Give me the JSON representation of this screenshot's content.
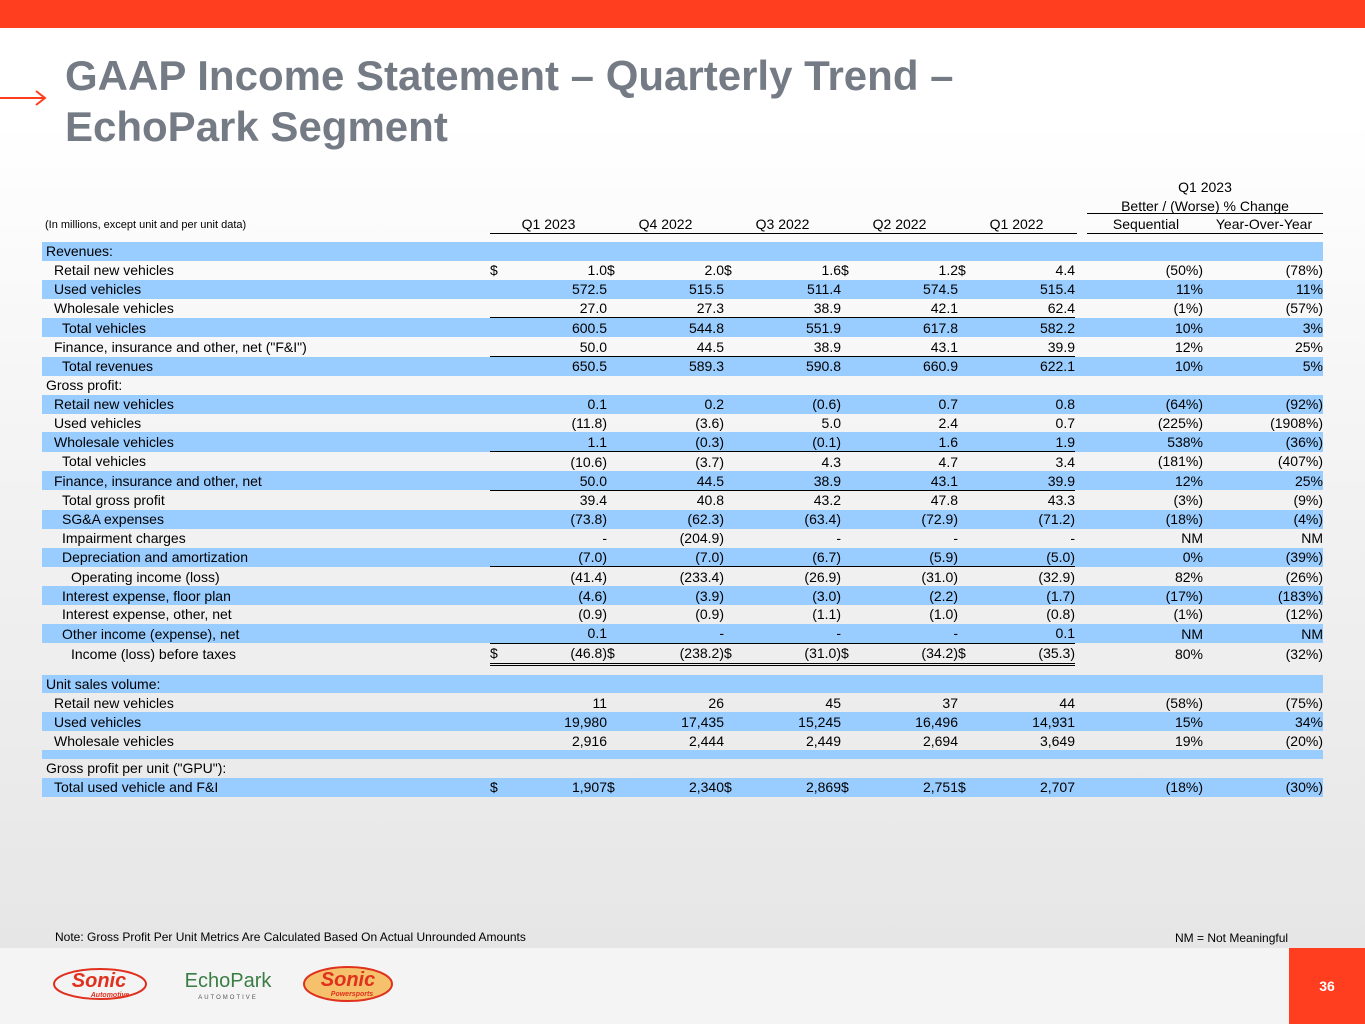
{
  "title": {
    "line1": "GAAP Income Statement – Quarterly Trend –",
    "line2": "EchoPark Segment"
  },
  "units_note": "(In millions, except unit and per unit data)",
  "columns": [
    "Q1 2023",
    "Q4 2022",
    "Q3 2022",
    "Q2 2022",
    "Q1 2022"
  ],
  "change_header": {
    "period": "Q1 2023",
    "label": "Better / (Worse) % Change",
    "sequential": "Sequential",
    "yoy": "Year-Over-Year"
  },
  "rows": [
    {
      "label": "Revenues:",
      "style": "blue",
      "indent": 0,
      "values": [
        "",
        "",
        "",
        "",
        ""
      ],
      "seq": "",
      "yoy": ""
    },
    {
      "label": "Retail new vehicles",
      "indent": 1,
      "dollar": true,
      "values": [
        "1.0",
        "2.0",
        "1.6",
        "1.2",
        "4.4"
      ],
      "seq": "(50%)",
      "yoy": "(78%)"
    },
    {
      "label": "Used vehicles",
      "style": "blue",
      "indent": 1,
      "values": [
        "572.5",
        "515.5",
        "511.4",
        "574.5",
        "515.4"
      ],
      "seq": "11%",
      "yoy": "11%"
    },
    {
      "label": "Wholesale vehicles",
      "indent": 1,
      "underline": "single",
      "values": [
        "27.0",
        "27.3",
        "38.9",
        "42.1",
        "62.4"
      ],
      "seq": "(1%)",
      "yoy": "(57%)"
    },
    {
      "label": "Total vehicles",
      "style": "blue",
      "indent": 2,
      "values": [
        "600.5",
        "544.8",
        "551.9",
        "617.8",
        "582.2"
      ],
      "seq": "10%",
      "yoy": "3%"
    },
    {
      "label": "Finance, insurance and other, net (\"F&I\")",
      "indent": 1,
      "underline": "single",
      "values": [
        "50.0",
        "44.5",
        "38.9",
        "43.1",
        "39.9"
      ],
      "seq": "12%",
      "yoy": "25%"
    },
    {
      "label": "Total revenues",
      "style": "blue",
      "indent": 2,
      "values": [
        "650.5",
        "589.3",
        "590.8",
        "660.9",
        "622.1"
      ],
      "seq": "10%",
      "yoy": "5%"
    },
    {
      "label": "Gross profit:",
      "indent": 0,
      "values": [
        "",
        "",
        "",
        "",
        ""
      ],
      "seq": "",
      "yoy": ""
    },
    {
      "label": "Retail new vehicles",
      "style": "blue",
      "indent": 1,
      "values": [
        "0.1",
        "0.2",
        "(0.6)",
        "0.7",
        "0.8"
      ],
      "seq": "(64%)",
      "yoy": "(92%)"
    },
    {
      "label": "Used vehicles",
      "indent": 1,
      "values": [
        "(11.8)",
        "(3.6)",
        "5.0",
        "2.4",
        "0.7"
      ],
      "seq": "(225%)",
      "yoy": "(1908%)"
    },
    {
      "label": "Wholesale vehicles",
      "style": "blue",
      "indent": 1,
      "underline": "single",
      "values": [
        "1.1",
        "(0.3)",
        "(0.1)",
        "1.6",
        "1.9"
      ],
      "seq": "538%",
      "yoy": "(36%)"
    },
    {
      "label": "Total vehicles",
      "indent": 2,
      "values": [
        "(10.6)",
        "(3.7)",
        "4.3",
        "4.7",
        "3.4"
      ],
      "seq": "(181%)",
      "yoy": "(407%)"
    },
    {
      "label": "Finance, insurance and other, net",
      "style": "blue",
      "indent": 1,
      "underline": "single",
      "values": [
        "50.0",
        "44.5",
        "38.9",
        "43.1",
        "39.9"
      ],
      "seq": "12%",
      "yoy": "25%"
    },
    {
      "label": "Total gross profit",
      "indent": 2,
      "values": [
        "39.4",
        "40.8",
        "43.2",
        "47.8",
        "43.3"
      ],
      "seq": "(3%)",
      "yoy": "(9%)"
    },
    {
      "label": "SG&A expenses",
      "style": "blue",
      "indent": 2,
      "values": [
        "(73.8)",
        "(62.3)",
        "(63.4)",
        "(72.9)",
        "(71.2)"
      ],
      "seq": "(18%)",
      "yoy": "(4%)"
    },
    {
      "label": "Impairment charges",
      "indent": 2,
      "values": [
        "-",
        "(204.9)",
        "-",
        "-",
        "-"
      ],
      "seq": "NM",
      "yoy": "NM"
    },
    {
      "label": "Depreciation and amortization",
      "style": "blue",
      "indent": 2,
      "underline": "single",
      "values": [
        "(7.0)",
        "(7.0)",
        "(6.7)",
        "(5.9)",
        "(5.0)"
      ],
      "seq": "0%",
      "yoy": "(39%)"
    },
    {
      "label": "Operating income (loss)",
      "indent": 3,
      "values": [
        "(41.4)",
        "(233.4)",
        "(26.9)",
        "(31.0)",
        "(32.9)"
      ],
      "seq": "82%",
      "yoy": "(26%)"
    },
    {
      "label": "Interest expense, floor plan",
      "style": "blue",
      "indent": 2,
      "values": [
        "(4.6)",
        "(3.9)",
        "(3.0)",
        "(2.2)",
        "(1.7)"
      ],
      "seq": "(17%)",
      "yoy": "(183%)"
    },
    {
      "label": "Interest expense, other, net",
      "indent": 2,
      "values": [
        "(0.9)",
        "(0.9)",
        "(1.1)",
        "(1.0)",
        "(0.8)"
      ],
      "seq": "(1%)",
      "yoy": "(12%)"
    },
    {
      "label": "Other income (expense), net",
      "style": "blue",
      "indent": 2,
      "underline": "single",
      "values": [
        "0.1",
        "-",
        "-",
        "-",
        "0.1"
      ],
      "seq": "NM",
      "yoy": "NM"
    },
    {
      "label": "Income (loss) before taxes",
      "indent": 3,
      "dollar": true,
      "underline": "double",
      "values": [
        "(46.8)",
        "(238.2)",
        "(31.0)",
        "(34.2)",
        "(35.3)"
      ],
      "seq": "80%",
      "yoy": "(32%)"
    },
    {
      "gap": true
    },
    {
      "label": "Unit sales volume:",
      "style": "blue",
      "indent": 0,
      "values": [
        "",
        "",
        "",
        "",
        ""
      ],
      "seq": "",
      "yoy": ""
    },
    {
      "label": "Retail new vehicles",
      "indent": 1,
      "values": [
        "11",
        "26",
        "45",
        "37",
        "44"
      ],
      "seq": "(58%)",
      "yoy": "(75%)"
    },
    {
      "label": "Used vehicles",
      "style": "blue",
      "indent": 1,
      "values": [
        "19,980",
        "17,435",
        "15,245",
        "16,496",
        "14,931"
      ],
      "seq": "15%",
      "yoy": "34%"
    },
    {
      "label": "Wholesale vehicles",
      "indent": 1,
      "values": [
        "2,916",
        "2,444",
        "2,449",
        "2,694",
        "3,649"
      ],
      "seq": "19%",
      "yoy": "(20%)"
    },
    {
      "gap": true,
      "style": "blue"
    },
    {
      "label": "Gross profit per unit (\"GPU\"):",
      "indent": 0,
      "values": [
        "",
        "",
        "",
        "",
        ""
      ],
      "seq": "",
      "yoy": ""
    },
    {
      "label": "Total used vehicle and F&I",
      "style": "blue",
      "indent": 1,
      "dollar": true,
      "values": [
        "1,907",
        "2,340",
        "2,869",
        "2,751",
        "2,707"
      ],
      "seq": "(18%)",
      "yoy": "(30%)"
    }
  ],
  "dollar_sign": "$",
  "footer": {
    "note": "Note: Gross Profit Per Unit Metrics Are Calculated Based On Actual Unrounded Amounts",
    "nm": "NM = Not Meaningful",
    "page": "36",
    "logos": {
      "sonic": "Sonic",
      "sonic_sub": "Automotive",
      "echopark": "EchoPark",
      "echopark_sub": "AUTOMOTIVE",
      "powersports": "Sonic",
      "powersports_sub": "Powersports"
    }
  },
  "colors": {
    "accent": "#ff3d1f",
    "title": "#757b85",
    "row_highlight": "#99ccff"
  }
}
